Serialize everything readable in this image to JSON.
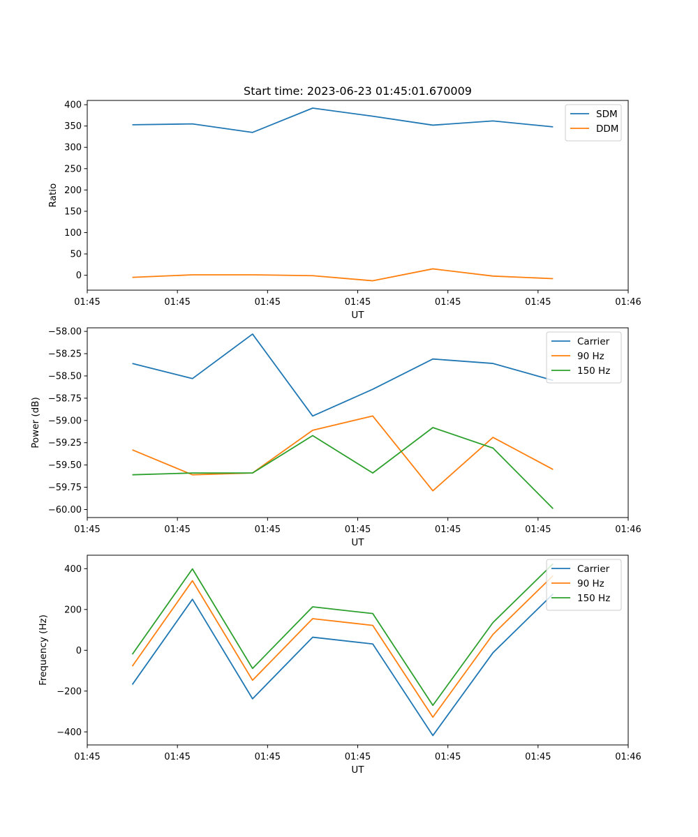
{
  "chart_data": [
    {
      "type": "line",
      "title": "Start time: 2023-06-23 01:45:01.670009",
      "xlabel": "UT",
      "ylabel": "Ratio",
      "x": [
        1,
        2,
        3,
        4,
        5,
        6,
        7,
        8
      ],
      "xlim": [
        0.25,
        9.25
      ],
      "ylim": [
        -35,
        410
      ],
      "yticks": [
        0,
        50,
        100,
        150,
        200,
        250,
        300,
        350,
        400
      ],
      "ytick_labels": [
        "0",
        "50",
        "100",
        "150",
        "200",
        "250",
        "300",
        "350",
        "400"
      ],
      "xticks": [
        0.25,
        1.75,
        3.25,
        4.75,
        6.25,
        7.75,
        9.25
      ],
      "xtick_labels": [
        "01:45",
        "01:45",
        "01:45",
        "01:45",
        "01:45",
        "01:45",
        "01:46"
      ],
      "legend_position": "top-right",
      "grid": false,
      "series": [
        {
          "name": "SDM",
          "color": "#1f77b4",
          "values": [
            353,
            355,
            335,
            392,
            373,
            352,
            362,
            348
          ]
        },
        {
          "name": "DDM",
          "color": "#ff7f0e",
          "values": [
            -5,
            1,
            1,
            -1,
            -13,
            15,
            -2,
            -8
          ]
        }
      ]
    },
    {
      "type": "line",
      "title": "",
      "xlabel": "UT",
      "ylabel": "Power (dB)",
      "x": [
        1,
        2,
        3,
        4,
        5,
        6,
        7,
        8
      ],
      "xlim": [
        0.25,
        9.25
      ],
      "ylim": [
        -60.09,
        -57.96
      ],
      "yticks": [
        -58.0,
        -58.25,
        -58.5,
        -58.75,
        -59.0,
        -59.25,
        -59.5,
        -59.75,
        -60.0
      ],
      "ytick_labels": [
        "−58.00",
        "−58.25",
        "−58.50",
        "−58.75",
        "−59.00",
        "−59.25",
        "−59.50",
        "−59.75",
        "−60.00"
      ],
      "xticks": [
        0.25,
        1.75,
        3.25,
        4.75,
        6.25,
        7.75,
        9.25
      ],
      "xtick_labels": [
        "01:45",
        "01:45",
        "01:45",
        "01:45",
        "01:45",
        "01:45",
        "01:46"
      ],
      "legend_position": "top-right",
      "grid": false,
      "series": [
        {
          "name": "Carrier",
          "color": "#1f77b4",
          "values": [
            -58.36,
            -58.53,
            -58.03,
            -58.95,
            -58.65,
            -58.31,
            -58.36,
            -58.55
          ]
        },
        {
          "name": "90 Hz",
          "color": "#ff7f0e",
          "values": [
            -59.33,
            -59.61,
            -59.59,
            -59.11,
            -58.95,
            -59.79,
            -59.19,
            -59.55
          ]
        },
        {
          "name": "150 Hz",
          "color": "#2ca02c",
          "values": [
            -59.61,
            -59.59,
            -59.59,
            -59.17,
            -59.59,
            -59.08,
            -59.31,
            -59.99
          ]
        }
      ]
    },
    {
      "type": "line",
      "title": "",
      "xlabel": "UT",
      "ylabel": "Frequency (Hz)",
      "x": [
        1,
        2,
        3,
        4,
        5,
        6,
        7,
        8
      ],
      "xlim": [
        0.25,
        9.25
      ],
      "ylim": [
        -464,
        466
      ],
      "yticks": [
        -400,
        -200,
        0,
        200,
        400
      ],
      "ytick_labels": [
        "−400",
        "−200",
        "0",
        "200",
        "400"
      ],
      "xticks": [
        0.25,
        1.75,
        3.25,
        4.75,
        6.25,
        7.75,
        9.25
      ],
      "xtick_labels": [
        "01:45",
        "01:45",
        "01:45",
        "01:45",
        "01:45",
        "01:45",
        "01:46"
      ],
      "legend_position": "top-right",
      "grid": false,
      "series": [
        {
          "name": "Carrier",
          "color": "#1f77b4",
          "values": [
            -168,
            250,
            -238,
            64,
            31,
            -418,
            -12,
            276
          ]
        },
        {
          "name": "90 Hz",
          "color": "#ff7f0e",
          "values": [
            -78,
            341,
            -147,
            155,
            122,
            -328,
            78,
            366
          ]
        },
        {
          "name": "150 Hz",
          "color": "#2ca02c",
          "values": [
            -20,
            399,
            -89,
            213,
            180,
            -270,
            136,
            424
          ]
        }
      ]
    }
  ]
}
